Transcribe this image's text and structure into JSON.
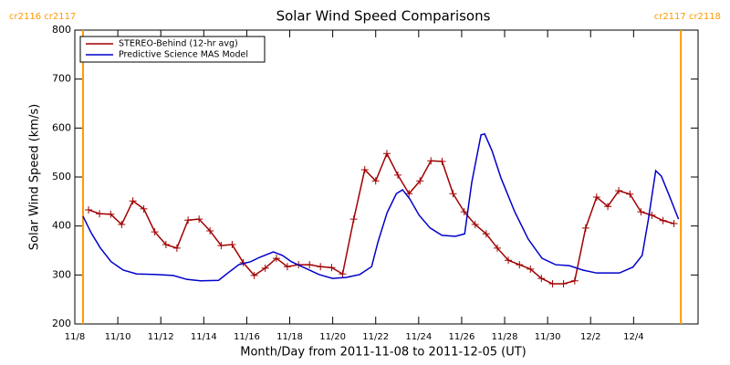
{
  "chart_data": {
    "type": "line",
    "title": "Solar Wind Speed Comparisons",
    "x_label": "Month/Day from 2011-11-08 to 2011-12-05 (UT)",
    "y_label": "Solar Wind Speed (km/s)",
    "xlim": [
      0,
      29
    ],
    "xticks": [
      {
        "value": 0,
        "label": "11/8"
      },
      {
        "value": 2,
        "label": "11/10"
      },
      {
        "value": 4,
        "label": "11/12"
      },
      {
        "value": 6,
        "label": "11/14"
      },
      {
        "value": 8,
        "label": "11/16"
      },
      {
        "value": 10,
        "label": "11/18"
      },
      {
        "value": 12,
        "label": "11/20"
      },
      {
        "value": 14,
        "label": "11/22"
      },
      {
        "value": 16,
        "label": "11/24"
      },
      {
        "value": 18,
        "label": "11/26"
      },
      {
        "value": 20,
        "label": "11/28"
      },
      {
        "value": 22,
        "label": "11/30"
      },
      {
        "value": 24,
        "label": "12/2"
      },
      {
        "value": 26,
        "label": "12/4"
      }
    ],
    "ylim": [
      200,
      800
    ],
    "yticks": [
      200,
      300,
      400,
      500,
      600,
      700,
      800
    ],
    "legend": "top-left",
    "markers": [
      {
        "x": 0.38,
        "label": "cr2116 cr2117",
        "color": "#ff9900"
      },
      {
        "x": 28.2,
        "label": "cr2117 cr2118",
        "color": "#ff9900"
      }
    ],
    "series": [
      {
        "name": "STEREO-Behind (12-hr avg)",
        "color": "#a00000",
        "marker": "+",
        "x": [
          0.64,
          1.15,
          1.67,
          2.18,
          2.7,
          3.21,
          3.72,
          4.24,
          4.75,
          5.27,
          5.78,
          6.29,
          6.81,
          7.32,
          7.84,
          8.35,
          8.86,
          9.38,
          9.89,
          10.41,
          10.92,
          11.43,
          11.95,
          12.46,
          12.98,
          13.49,
          14.0,
          14.52,
          15.03,
          15.55,
          16.06,
          16.57,
          17.09,
          17.6,
          18.12,
          18.63,
          19.14,
          19.66,
          20.17,
          20.69,
          21.2,
          21.71,
          22.23,
          22.74,
          23.26,
          23.77,
          24.28,
          24.8,
          25.31,
          25.83,
          26.34,
          26.85,
          27.37,
          27.88
        ],
        "values": [
          433,
          425,
          424,
          403,
          451,
          435,
          388,
          362,
          355,
          412,
          414,
          390,
          360,
          362,
          325,
          299,
          314,
          334,
          317,
          321,
          321,
          317,
          315,
          302,
          414,
          515,
          492,
          548,
          504,
          466,
          492,
          533,
          532,
          466,
          429,
          403,
          384,
          355,
          330,
          321,
          312,
          293,
          282,
          282,
          288,
          396,
          459,
          440,
          472,
          465,
          429,
          422,
          411,
          405
        ]
      },
      {
        "name": "Predictive Science MAS Model",
        "color": "#0000cc",
        "x": [
          0.38,
          0.76,
          1.19,
          1.69,
          2.25,
          2.88,
          3.73,
          4.58,
          5.21,
          5.85,
          6.69,
          7.12,
          7.63,
          8.18,
          8.6,
          9.24,
          9.66,
          10.08,
          10.72,
          11.36,
          11.99,
          12.63,
          13.26,
          13.81,
          14.11,
          14.53,
          14.96,
          15.25,
          15.59,
          16.02,
          16.53,
          17.08,
          17.71,
          18.14,
          18.47,
          18.9,
          19.07,
          19.41,
          19.83,
          20.47,
          21.1,
          21.74,
          22.37,
          23.01,
          23.64,
          24.28,
          25.34,
          25.97,
          26.4,
          26.69,
          27.03,
          27.29,
          27.67,
          28.09
        ],
        "values": [
          420,
          386,
          355,
          327,
          310,
          302,
          301,
          299,
          291,
          288,
          289,
          304,
          321,
          327,
          336,
          347,
          340,
          327,
          314,
          301,
          293,
          295,
          301,
          317,
          368,
          427,
          466,
          474,
          455,
          422,
          396,
          381,
          379,
          384,
          489,
          586,
          588,
          554,
          498,
          429,
          373,
          334,
          321,
          319,
          310,
          304,
          304,
          316,
          340,
          414,
          513,
          502,
          461,
          414
        ]
      }
    ]
  }
}
